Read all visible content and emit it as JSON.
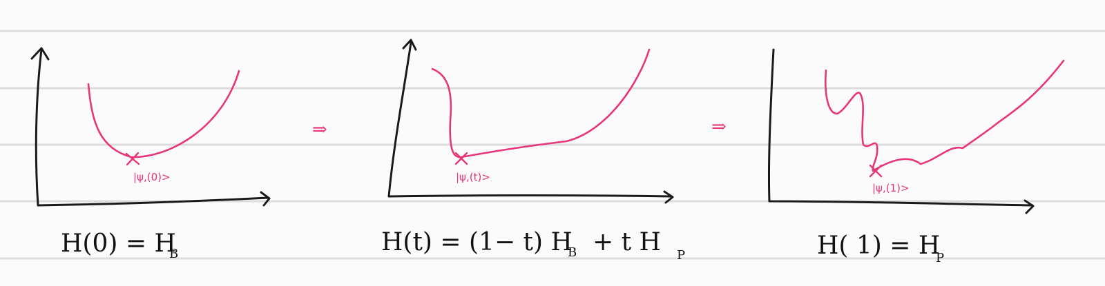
{
  "colors": {
    "ink": "#111111",
    "accent": "#e6357a",
    "rule": "#dcdcdc",
    "paper": "#fbfbfb"
  },
  "panels": [
    {
      "state_label": "|ψ,(0)>",
      "equation": {
        "main": "H(0) = H",
        "sub": "B"
      }
    },
    {
      "state_label": "|ψ,(t)>",
      "equation": {
        "main": "H(t) = (1− t) H",
        "sub": "B",
        "rest": "+   t H",
        "sub2": "P"
      }
    },
    {
      "state_label": "|ψ,(1)>",
      "equation": {
        "main": "H( 1) = H",
        "sub": "P"
      }
    }
  ],
  "transition_arrow": "⇒"
}
